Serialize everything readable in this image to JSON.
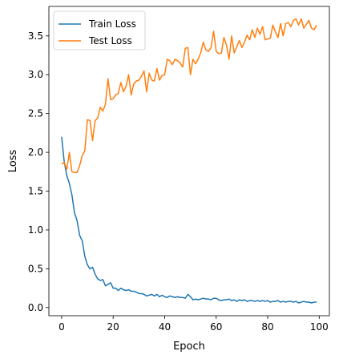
{
  "chart_data": {
    "type": "line",
    "title": "",
    "xlabel": "Epoch",
    "ylabel": "Loss",
    "xlim": [
      -4.95,
      103.95
    ],
    "ylim": [
      -0.105,
      3.88
    ],
    "xticks": [
      0,
      20,
      40,
      60,
      80,
      100
    ],
    "yticks": [
      0.0,
      0.5,
      1.0,
      1.5,
      2.0,
      2.5,
      3.0,
      3.5
    ],
    "xtick_labels": [
      "0",
      "20",
      "40",
      "60",
      "80",
      "100"
    ],
    "ytick_labels": [
      "0.0",
      "0.5",
      "1.0",
      "1.5",
      "2.0",
      "2.5",
      "3.0",
      "3.5"
    ],
    "grid": false,
    "legend": "top-left",
    "series": [
      {
        "name": "Train Loss",
        "color": "#1f77b4",
        "x": [
          0,
          1,
          2,
          3,
          4,
          5,
          6,
          7,
          8,
          9,
          10,
          11,
          12,
          13,
          14,
          15,
          16,
          17,
          18,
          19,
          20,
          21,
          22,
          23,
          24,
          25,
          26,
          27,
          28,
          29,
          30,
          31,
          32,
          33,
          34,
          35,
          36,
          37,
          38,
          39,
          40,
          41,
          42,
          43,
          44,
          45,
          46,
          47,
          48,
          49,
          50,
          51,
          52,
          53,
          54,
          55,
          56,
          57,
          58,
          59,
          60,
          61,
          62,
          63,
          64,
          65,
          66,
          67,
          68,
          69,
          70,
          71,
          72,
          73,
          74,
          75,
          76,
          77,
          78,
          79,
          80,
          81,
          82,
          83,
          84,
          85,
          86,
          87,
          88,
          89,
          90,
          91,
          92,
          93,
          94,
          95,
          96,
          97,
          98,
          99
        ],
        "values": [
          2.2,
          1.88,
          1.7,
          1.6,
          1.45,
          1.22,
          1.12,
          0.93,
          0.86,
          0.66,
          0.55,
          0.5,
          0.52,
          0.43,
          0.37,
          0.35,
          0.36,
          0.28,
          0.3,
          0.32,
          0.25,
          0.25,
          0.22,
          0.25,
          0.23,
          0.22,
          0.23,
          0.21,
          0.21,
          0.2,
          0.18,
          0.18,
          0.17,
          0.15,
          0.16,
          0.17,
          0.15,
          0.17,
          0.14,
          0.16,
          0.14,
          0.13,
          0.15,
          0.14,
          0.13,
          0.14,
          0.13,
          0.13,
          0.12,
          0.17,
          0.14,
          0.1,
          0.11,
          0.1,
          0.11,
          0.12,
          0.11,
          0.11,
          0.1,
          0.12,
          0.12,
          0.1,
          0.09,
          0.1,
          0.1,
          0.11,
          0.09,
          0.1,
          0.08,
          0.1,
          0.09,
          0.1,
          0.08,
          0.09,
          0.09,
          0.08,
          0.09,
          0.08,
          0.09,
          0.08,
          0.09,
          0.07,
          0.08,
          0.08,
          0.09,
          0.07,
          0.08,
          0.07,
          0.08,
          0.08,
          0.07,
          0.08,
          0.06,
          0.07,
          0.08,
          0.07,
          0.07,
          0.06,
          0.07,
          0.07
        ]
      },
      {
        "name": "Test Loss",
        "color": "#ff7f0e",
        "x": [
          0,
          1,
          2,
          3,
          4,
          5,
          6,
          7,
          8,
          9,
          10,
          11,
          12,
          13,
          14,
          15,
          16,
          17,
          18,
          19,
          20,
          21,
          22,
          23,
          24,
          25,
          26,
          27,
          28,
          29,
          30,
          31,
          32,
          33,
          34,
          35,
          36,
          37,
          38,
          39,
          40,
          41,
          42,
          43,
          44,
          45,
          46,
          47,
          48,
          49,
          50,
          51,
          52,
          53,
          54,
          55,
          56,
          57,
          58,
          59,
          60,
          61,
          62,
          63,
          64,
          65,
          66,
          67,
          68,
          69,
          70,
          71,
          72,
          73,
          74,
          75,
          76,
          77,
          78,
          79,
          80,
          81,
          82,
          83,
          84,
          85,
          86,
          87,
          88,
          89,
          90,
          91,
          92,
          93,
          94,
          95,
          96,
          97,
          98,
          99
        ],
        "values": [
          1.85,
          1.87,
          1.78,
          2.0,
          1.75,
          1.74,
          1.74,
          1.83,
          1.96,
          2.02,
          2.42,
          2.41,
          2.15,
          2.41,
          2.44,
          2.58,
          2.53,
          2.62,
          2.95,
          2.68,
          2.69,
          2.74,
          2.76,
          2.9,
          2.78,
          2.85,
          3.0,
          2.74,
          2.88,
          2.92,
          2.93,
          2.98,
          3.05,
          2.78,
          3.02,
          2.93,
          2.92,
          3.08,
          2.93,
          2.99,
          3.0,
          3.2,
          3.18,
          3.13,
          3.2,
          3.18,
          3.15,
          3.1,
          3.34,
          3.35,
          3.0,
          3.2,
          3.14,
          3.2,
          3.28,
          3.42,
          3.32,
          3.3,
          3.35,
          3.56,
          3.3,
          3.27,
          3.28,
          3.48,
          3.38,
          3.2,
          3.5,
          3.28,
          3.36,
          3.44,
          3.35,
          3.42,
          3.51,
          3.45,
          3.58,
          3.48,
          3.6,
          3.52,
          3.62,
          3.45,
          3.46,
          3.47,
          3.64,
          3.55,
          3.48,
          3.66,
          3.5,
          3.66,
          3.67,
          3.62,
          3.7,
          3.72,
          3.64,
          3.72,
          3.6,
          3.65,
          3.7,
          3.6,
          3.58,
          3.64
        ]
      }
    ]
  }
}
